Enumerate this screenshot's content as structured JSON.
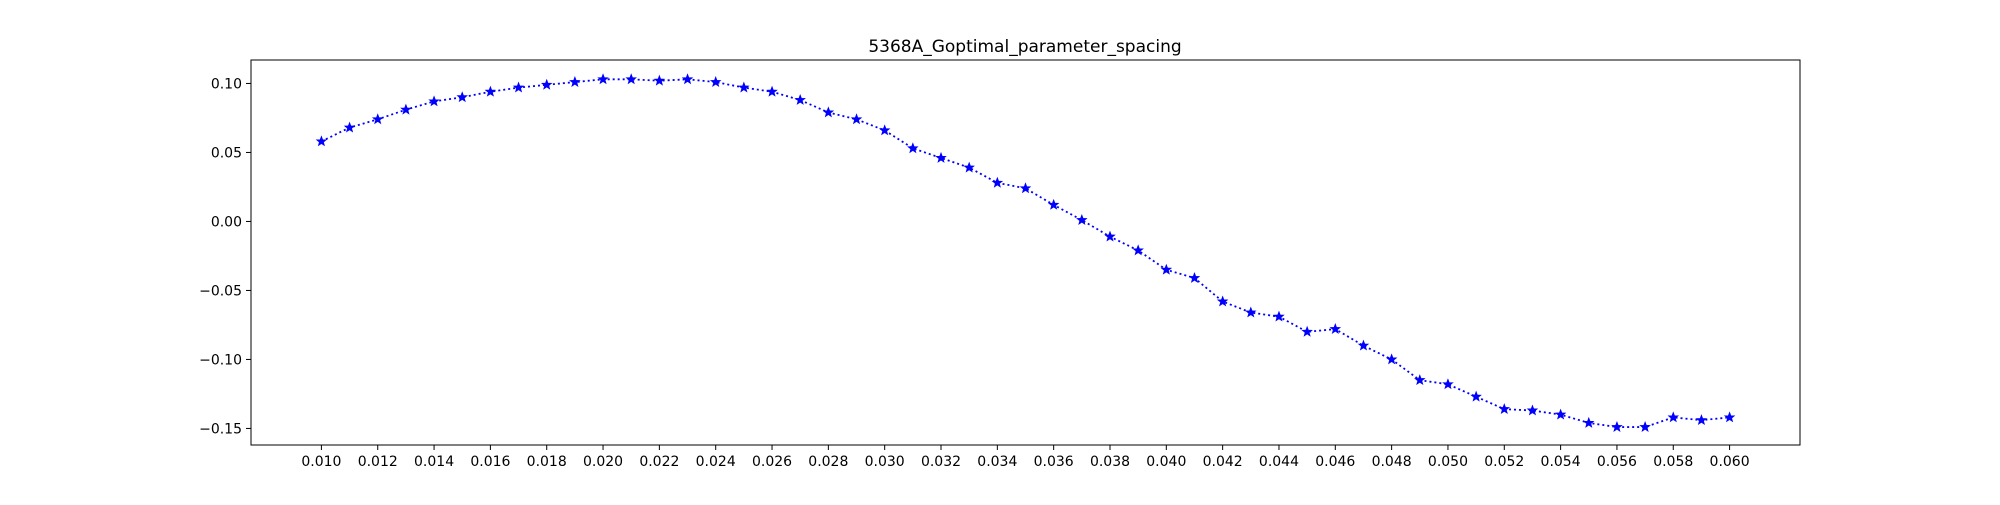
{
  "chart_data": {
    "type": "line",
    "title": "5368A_Goptimal_parameter_spacing",
    "xlabel": "",
    "ylabel": "",
    "xlim": [
      0.0075,
      0.0625
    ],
    "ylim": [
      -0.162,
      0.117
    ],
    "x_ticks": [
      "0.010",
      "0.012",
      "0.014",
      "0.016",
      "0.018",
      "0.020",
      "0.022",
      "0.024",
      "0.026",
      "0.028",
      "0.030",
      "0.032",
      "0.034",
      "0.036",
      "0.038",
      "0.040",
      "0.042",
      "0.044",
      "0.046",
      "0.048",
      "0.050",
      "0.052",
      "0.054",
      "0.056",
      "0.058",
      "0.060"
    ],
    "y_ticks": [
      "0.10",
      "0.05",
      "0.00",
      "−0.05",
      "−0.10",
      "−0.15"
    ],
    "grid": false,
    "legend": "none",
    "series": [
      {
        "color": "#0000ff",
        "line_style": "dotted",
        "marker": "star",
        "x": [
          0.01,
          0.011,
          0.012,
          0.013,
          0.014,
          0.015,
          0.016,
          0.017,
          0.018,
          0.019,
          0.02,
          0.021,
          0.022,
          0.023,
          0.024,
          0.025,
          0.026,
          0.027,
          0.028,
          0.029,
          0.03,
          0.031,
          0.032,
          0.033,
          0.034,
          0.035,
          0.036,
          0.037,
          0.038,
          0.039,
          0.04,
          0.041,
          0.042,
          0.043,
          0.044,
          0.045,
          0.046,
          0.047,
          0.048,
          0.049,
          0.05,
          0.051,
          0.052,
          0.053,
          0.054,
          0.055,
          0.056,
          0.057,
          0.058,
          0.059,
          0.06
        ],
        "y": [
          0.058,
          0.068,
          0.074,
          0.081,
          0.087,
          0.09,
          0.094,
          0.097,
          0.099,
          0.101,
          0.103,
          0.103,
          0.102,
          0.103,
          0.101,
          0.097,
          0.094,
          0.088,
          0.079,
          0.074,
          0.066,
          0.053,
          0.046,
          0.039,
          0.028,
          0.024,
          0.012,
          0.001,
          -0.011,
          -0.021,
          -0.035,
          -0.041,
          -0.058,
          -0.066,
          -0.069,
          -0.08,
          -0.078,
          -0.09,
          -0.1,
          -0.115,
          -0.118,
          -0.127,
          -0.136,
          -0.137,
          -0.14,
          -0.146,
          -0.149,
          -0.149,
          -0.142,
          -0.144,
          -0.142
        ]
      }
    ]
  }
}
